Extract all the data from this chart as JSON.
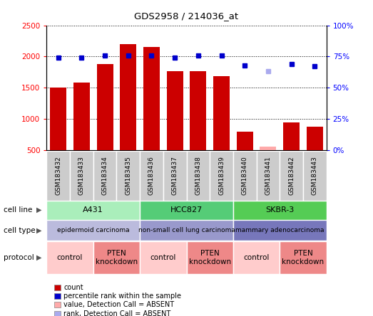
{
  "title": "GDS2958 / 214036_at",
  "samples": [
    "GSM183432",
    "GSM183433",
    "GSM183434",
    "GSM183435",
    "GSM183436",
    "GSM183437",
    "GSM183438",
    "GSM183439",
    "GSM183440",
    "GSM183441",
    "GSM183442",
    "GSM183443"
  ],
  "bar_values": [
    1500,
    1580,
    1880,
    2200,
    2150,
    1770,
    1770,
    1680,
    800,
    560,
    940,
    870
  ],
  "bar_absent": [
    false,
    false,
    false,
    false,
    false,
    false,
    false,
    false,
    false,
    true,
    false,
    false
  ],
  "rank_values": [
    74,
    74,
    76,
    76,
    76,
    74,
    76,
    76,
    68,
    63,
    69,
    67
  ],
  "rank_absent": [
    false,
    false,
    false,
    false,
    false,
    false,
    false,
    false,
    false,
    true,
    false,
    false
  ],
  "bar_color": "#cc0000",
  "bar_absent_color": "#ffaaaa",
  "rank_color": "#0000cc",
  "rank_absent_color": "#aaaaee",
  "ylim_left": [
    500,
    2500
  ],
  "ylim_right": [
    0,
    100
  ],
  "yticks_left": [
    500,
    1000,
    1500,
    2000,
    2500
  ],
  "yticks_right": [
    0,
    25,
    50,
    75,
    100
  ],
  "cell_line_groups": [
    {
      "label": "A431",
      "start": 0,
      "end": 3,
      "color": "#aaeebb"
    },
    {
      "label": "HCC827",
      "start": 4,
      "end": 7,
      "color": "#55cc77"
    },
    {
      "label": "SKBR-3",
      "start": 8,
      "end": 11,
      "color": "#55cc55"
    }
  ],
  "cell_type_groups": [
    {
      "label": "epidermoid carcinoma",
      "start": 0,
      "end": 3,
      "color": "#bbbbdd"
    },
    {
      "label": "non-small cell lung carcinoma",
      "start": 4,
      "end": 7,
      "color": "#9999cc"
    },
    {
      "label": "mammary adenocarcinoma",
      "start": 8,
      "end": 11,
      "color": "#7777bb"
    }
  ],
  "protocol_groups": [
    {
      "label": "control",
      "start": 0,
      "end": 1,
      "color": "#ffcccc"
    },
    {
      "label": "PTEN\nknockdown",
      "start": 2,
      "end": 3,
      "color": "#ee8888"
    },
    {
      "label": "control",
      "start": 4,
      "end": 5,
      "color": "#ffcccc"
    },
    {
      "label": "PTEN\nknockdown",
      "start": 6,
      "end": 7,
      "color": "#ee8888"
    },
    {
      "label": "control",
      "start": 8,
      "end": 9,
      "color": "#ffcccc"
    },
    {
      "label": "PTEN\nknockdown",
      "start": 10,
      "end": 11,
      "color": "#ee8888"
    }
  ],
  "row_labels": [
    "cell line",
    "cell type",
    "protocol"
  ],
  "legend_items": [
    {
      "label": "count",
      "color": "#cc0000",
      "marker": "s"
    },
    {
      "label": "percentile rank within the sample",
      "color": "#0000cc",
      "marker": "s"
    },
    {
      "label": "value, Detection Call = ABSENT",
      "color": "#ffaaaa",
      "marker": "s"
    },
    {
      "label": "rank, Detection Call = ABSENT",
      "color": "#aaaaee",
      "marker": "s"
    }
  ]
}
